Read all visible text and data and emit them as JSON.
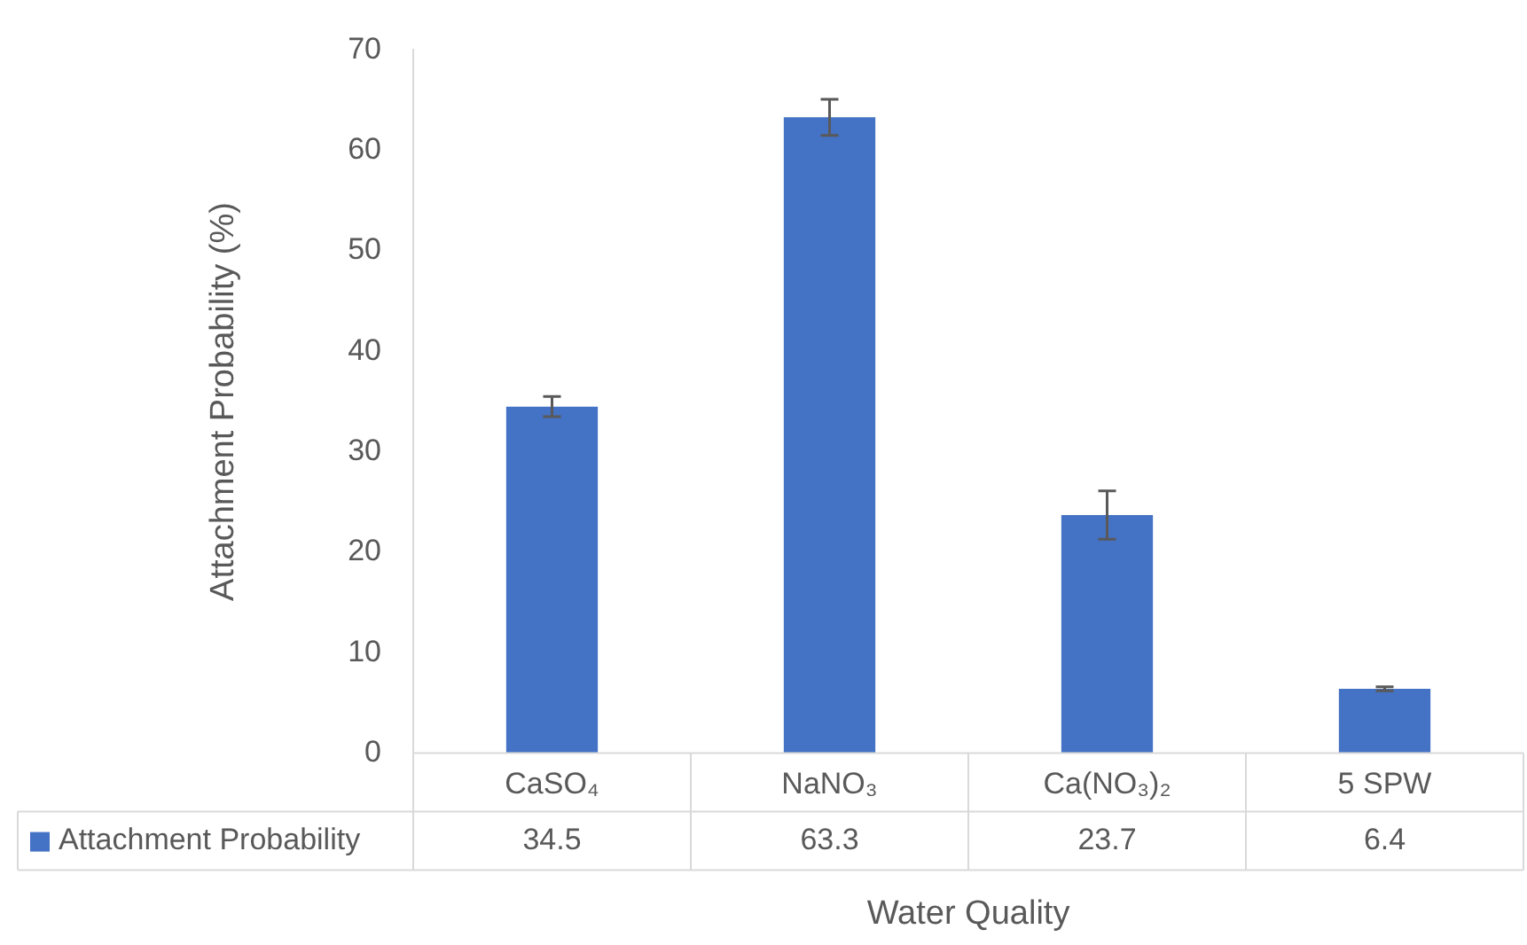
{
  "chart_data": {
    "type": "bar",
    "xlabel": "Water Quality",
    "ylabel": "Attachment Probability (%)",
    "categories": [
      "CaSO₄",
      "NaNO₃",
      "Ca(NO₃)₂",
      "5 SPW"
    ],
    "series": [
      {
        "name": "Attachment Probability",
        "color": "#4472c4",
        "values": [
          34.5,
          63.3,
          23.7,
          6.4
        ],
        "errors": [
          1,
          1.8,
          2.4,
          0.2
        ]
      }
    ],
    "ylim": [
      0,
      70
    ],
    "yticks": [
      0,
      10,
      20,
      30,
      40,
      50,
      60,
      70
    ],
    "grid": false,
    "legend": "bottom",
    "data_labels": true
  }
}
